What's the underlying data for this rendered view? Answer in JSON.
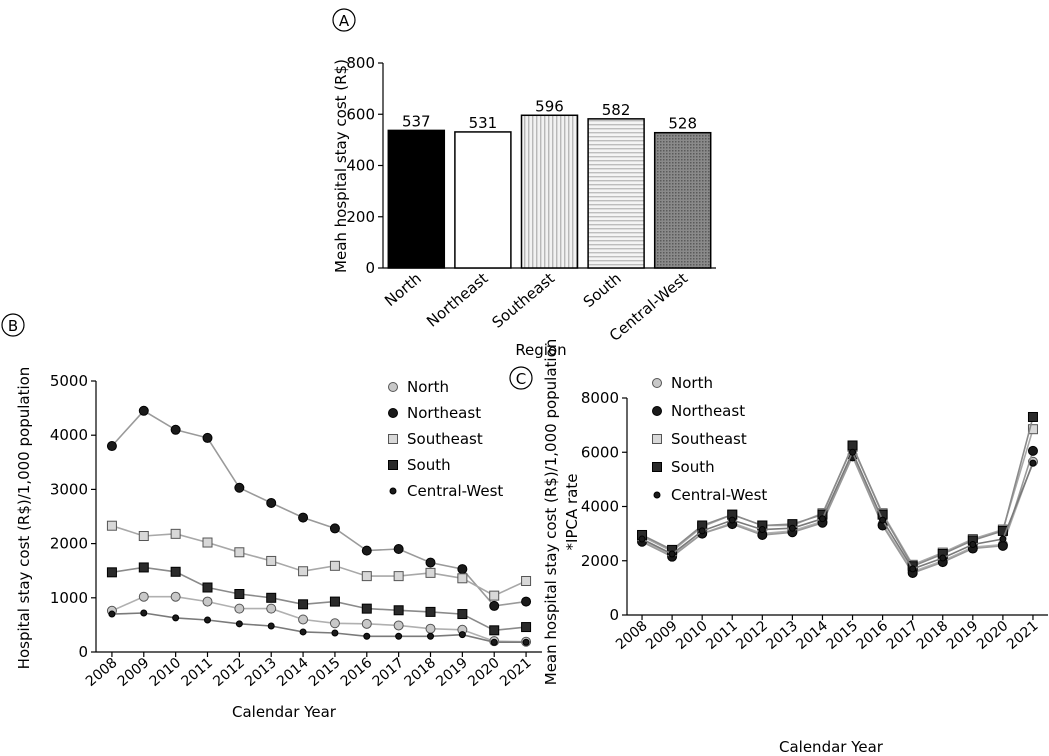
{
  "panel_letters": {
    "a": "A",
    "b": "B",
    "c": "C"
  },
  "chart_data": [
    {
      "type": "bar",
      "panel": "A",
      "ylabel": "Meah hospital stay cost (R$)",
      "xlabel": "Region",
      "ylim": [
        0,
        800
      ],
      "yticks": [
        0,
        200,
        400,
        600,
        800
      ],
      "categories": [
        "North",
        "Northeast",
        "Southeast",
        "South",
        "Central-West"
      ],
      "values": [
        537,
        531,
        596,
        582,
        528
      ],
      "data_labels": [
        "537",
        "531",
        "596",
        "582",
        "528"
      ],
      "bar_fills": [
        "solid-black",
        "white",
        "vertical-stripes",
        "horizontal-stripes",
        "dark-gray-dots"
      ]
    },
    {
      "type": "line",
      "panel": "B",
      "ylabel": "Hospital stay cost (R$)/1,000 population",
      "xlabel": "Calendar Year",
      "ylim": [
        0,
        5000
      ],
      "yticks": [
        0,
        1000,
        2000,
        3000,
        4000,
        5000
      ],
      "x": [
        "2008",
        "2009",
        "2010",
        "2011",
        "2012",
        "2013",
        "2014",
        "2015",
        "2016",
        "2017",
        "2018",
        "2019",
        "2020",
        "2021"
      ],
      "legend_position": "top-right",
      "series": [
        {
          "name": "North",
          "marker": "circle-light",
          "values": [
            760,
            1020,
            1020,
            930,
            800,
            800,
            600,
            530,
            520,
            490,
            430,
            410,
            200,
            190
          ]
        },
        {
          "name": "Northeast",
          "marker": "circle-dark",
          "values": [
            3800,
            4450,
            4100,
            3950,
            3030,
            2750,
            2480,
            2280,
            1870,
            1900,
            1650,
            1530,
            850,
            930
          ]
        },
        {
          "name": "Southeast",
          "marker": "square-light",
          "values": [
            2330,
            2140,
            2180,
            2020,
            1840,
            1680,
            1490,
            1590,
            1400,
            1400,
            1460,
            1360,
            1040,
            1310
          ]
        },
        {
          "name": "South",
          "marker": "square-dark",
          "values": [
            1470,
            1560,
            1480,
            1190,
            1070,
            1000,
            880,
            930,
            800,
            770,
            740,
            700,
            400,
            460
          ]
        },
        {
          "name": "Central-West",
          "marker": "star",
          "values": [
            700,
            720,
            630,
            590,
            520,
            480,
            370,
            350,
            290,
            290,
            290,
            320,
            180,
            180
          ]
        }
      ]
    },
    {
      "type": "line",
      "panel": "C",
      "ylabel": "Mean hospital stay cost (R$)/1,000 population",
      "ylabel2": "*IPCA rate",
      "xlabel": "Calendar Year",
      "ylim": [
        0,
        8000
      ],
      "yticks": [
        0,
        2000,
        4000,
        6000,
        8000
      ],
      "x": [
        "2008",
        "2009",
        "2010",
        "2011",
        "2012",
        "2013",
        "2014",
        "2015",
        "2016",
        "2017",
        "2018",
        "2019",
        "2020",
        "2021"
      ],
      "legend_position": "top-left",
      "series": [
        {
          "name": "North",
          "marker": "circle-light",
          "values": [
            2750,
            2200,
            3000,
            3400,
            3000,
            3100,
            3450,
            5900,
            3350,
            1600,
            2000,
            2500,
            2600,
            5650
          ]
        },
        {
          "name": "Northeast",
          "marker": "circle-dark",
          "values": [
            2700,
            2150,
            3000,
            3350,
            2950,
            3050,
            3400,
            5850,
            3300,
            1550,
            1950,
            2450,
            2550,
            6050
          ]
        },
        {
          "name": "Southeast",
          "marker": "square-light",
          "values": [
            2900,
            2350,
            3250,
            3700,
            3300,
            3300,
            3750,
            6200,
            3750,
            1850,
            2300,
            2800,
            3150,
            6850
          ]
        },
        {
          "name": "South",
          "marker": "square-dark",
          "values": [
            2950,
            2400,
            3300,
            3700,
            3300,
            3350,
            3700,
            6250,
            3700,
            1800,
            2250,
            2750,
            3100,
            7300
          ]
        },
        {
          "name": "Central-West",
          "marker": "star",
          "values": [
            2800,
            2250,
            3100,
            3500,
            3150,
            3200,
            3550,
            6000,
            3500,
            1700,
            2100,
            2600,
            2800,
            5600
          ]
        }
      ]
    }
  ]
}
